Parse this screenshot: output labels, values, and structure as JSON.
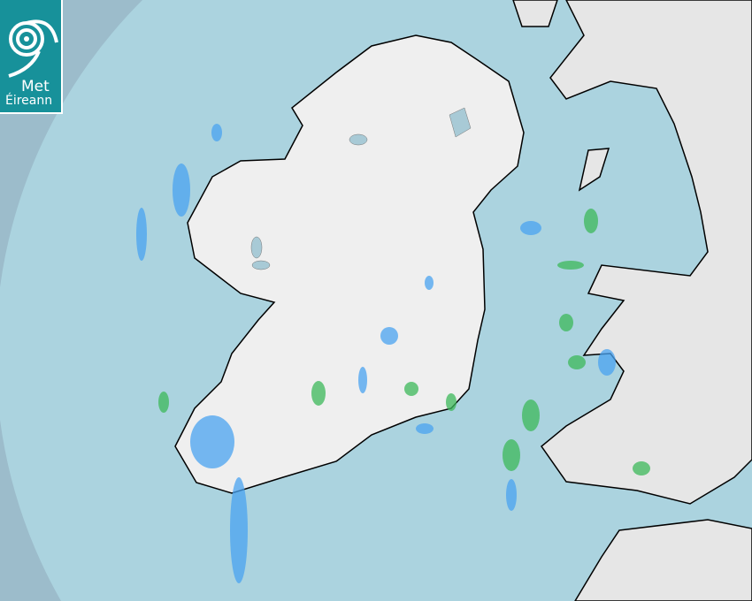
{
  "logo": {
    "line1": "Met",
    "line2": "Éireann",
    "icon": "met-eireann-swirl-icon",
    "color": "#17919a"
  },
  "colors": {
    "outer_sea": "#9cbccb",
    "radar_range_sea": "#abd3df",
    "land": "#eeeeee",
    "rain_light": "#4aa3f0",
    "rain_moderate": "#3cb85a"
  }
}
